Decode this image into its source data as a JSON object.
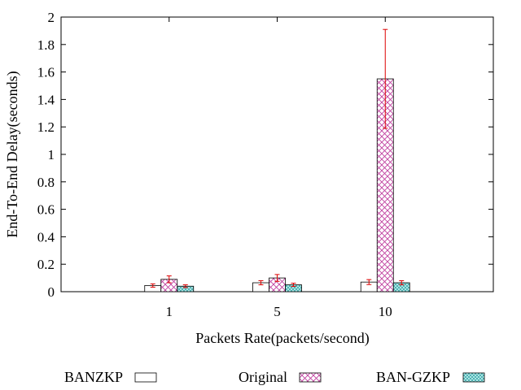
{
  "chart_data": {
    "type": "bar",
    "title": "",
    "xlabel": "Packets Rate(packets/second)",
    "ylabel": "End-To-End Delay(seconds)",
    "categories": [
      "1",
      "5",
      "10"
    ],
    "ylim": [
      0,
      2
    ],
    "yticks": [
      "0",
      "0.2",
      "0.4",
      "0.6",
      "0.8",
      "1",
      "1.2",
      "1.4",
      "1.6",
      "1.8",
      "2"
    ],
    "grid": false,
    "error_bars": true,
    "legend_position": "bottom",
    "series": [
      {
        "name": "BANZKP",
        "values": [
          0.045,
          0.065,
          0.07
        ],
        "errors": [
          0.012,
          0.015,
          0.018
        ],
        "pattern": "none",
        "color": "#ffffff"
      },
      {
        "name": "Original",
        "values": [
          0.09,
          0.1,
          1.55
        ],
        "errors": [
          0.025,
          0.025,
          0.36
        ],
        "pattern": "crosshatch",
        "color": "#cc44aa"
      },
      {
        "name": "BAN-GZKP",
        "values": [
          0.04,
          0.05,
          0.065
        ],
        "errors": [
          0.01,
          0.012,
          0.015
        ],
        "pattern": "dots",
        "color": "#33aaaa"
      }
    ],
    "error_color": "#dd0000"
  }
}
